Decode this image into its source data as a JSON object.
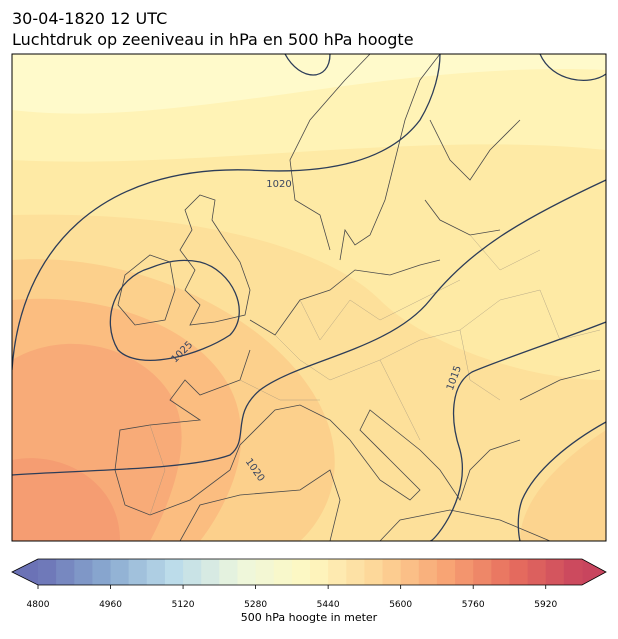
{
  "header": {
    "title": "30-04-1820 12 UTC",
    "subtitle": "Luchtdruk op zeeniveau in hPa en 500 hPa hoogte"
  },
  "contour_labels": [
    1020,
    1025,
    1020,
    1015
  ],
  "colorbar": {
    "range": [
      4800,
      6000
    ],
    "ticks": [
      4800,
      4960,
      5120,
      5280,
      5440,
      5600,
      5760,
      5920
    ],
    "label": "500 hPa hoogte in meter"
  }
}
